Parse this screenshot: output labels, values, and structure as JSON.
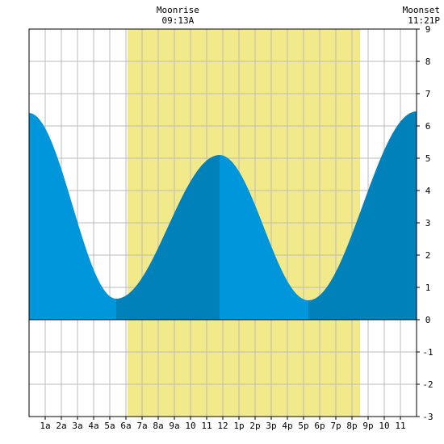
{
  "chart_data": {
    "type": "area",
    "x_unit": "hour of day",
    "xlim": [
      0,
      24
    ],
    "ylim": [
      -3,
      9
    ],
    "yticks": [
      -3,
      -2,
      -1,
      0,
      1,
      2,
      3,
      4,
      5,
      6,
      7,
      8,
      9
    ],
    "xticks": [
      {
        "x": 1,
        "label": "1a"
      },
      {
        "x": 2,
        "label": "2a"
      },
      {
        "x": 3,
        "label": "3a"
      },
      {
        "x": 4,
        "label": "4a"
      },
      {
        "x": 5,
        "label": "5a"
      },
      {
        "x": 6,
        "label": "6a"
      },
      {
        "x": 7,
        "label": "7a"
      },
      {
        "x": 8,
        "label": "8a"
      },
      {
        "x": 9,
        "label": "9a"
      },
      {
        "x": 10,
        "label": "10"
      },
      {
        "x": 11,
        "label": "11"
      },
      {
        "x": 12,
        "label": "12"
      },
      {
        "x": 13,
        "label": "1p"
      },
      {
        "x": 14,
        "label": "2p"
      },
      {
        "x": 15,
        "label": "3p"
      },
      {
        "x": 16,
        "label": "4p"
      },
      {
        "x": 17,
        "label": "5p"
      },
      {
        "x": 18,
        "label": "6p"
      },
      {
        "x": 19,
        "label": "7p"
      },
      {
        "x": 20,
        "label": "8p"
      },
      {
        "x": 21,
        "label": "9p"
      },
      {
        "x": 22,
        "label": "10"
      },
      {
        "x": 23,
        "label": "11"
      }
    ],
    "grid": true,
    "daylight": {
      "start": 6.1,
      "end": 20.5
    },
    "moonrise": {
      "label": "Moonrise",
      "time": "09:13A",
      "hour": 9.22
    },
    "moonset": {
      "label": "Moonset",
      "time": "11:21P",
      "hour": 23.35
    },
    "tide_extremes": [
      {
        "hour": 0.0,
        "height": 6.4,
        "kind": "high"
      },
      {
        "hour": 5.4,
        "height": 0.65,
        "kind": "low"
      },
      {
        "hour": 11.8,
        "height": 5.1,
        "kind": "high"
      },
      {
        "hour": 17.3,
        "height": 0.6,
        "kind": "low"
      },
      {
        "hour": 24.0,
        "height": 6.45,
        "kind": "high"
      }
    ],
    "colors": {
      "daylight": "#f2ea8a",
      "falling_tide": "#0096dc",
      "rising_tide": "#0081ba",
      "grid": "#bbbbbb",
      "axis": "#000000"
    }
  }
}
